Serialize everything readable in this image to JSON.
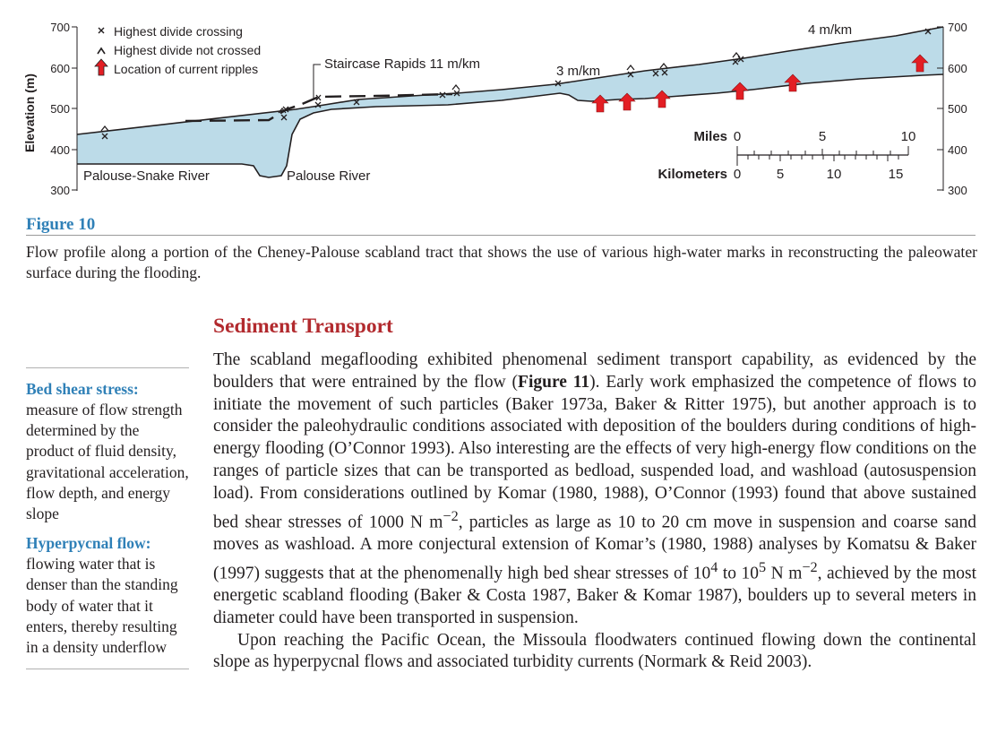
{
  "figure": {
    "label": "Figure 10",
    "caption": "Flow profile along a portion of the Cheney-Palouse scabland tract that shows the use of various high-water marks in reconstructing the paleowater surface during the flooding.",
    "y_axis_label": "Elevation (m)",
    "y_ticks": [
      "700",
      "600",
      "500",
      "400",
      "300"
    ],
    "legend": [
      "Highest divide crossing",
      "Highest divide not crossed",
      "Location of current ripples"
    ],
    "annotations": {
      "staircase": "Staircase Rapids 11 m/km",
      "gradient_3": "3 m/km",
      "gradient_4": "4 m/km",
      "palouse_snake": "Palouse-Snake River",
      "palouse_river": "Palouse River"
    },
    "scale": {
      "miles_label": "Miles",
      "miles_ticks": [
        "0",
        "5",
        "10"
      ],
      "km_label": "Kilometers",
      "km_ticks": [
        "0",
        "5",
        "10",
        "15"
      ]
    },
    "colors": {
      "water": "#bcdbe8",
      "arrow": "#e31e24",
      "figure_label": "#2f80b7"
    }
  },
  "section": {
    "title": "Sediment Transport",
    "p1_a": "The scabland megaflooding exhibited phenomenal sediment transport capability, as evidenced by the boulders that were entrained by the flow (",
    "p1_fig": "Figure 11",
    "p1_b": "). Early work emphasized the competence of flows to initiate the movement of such particles (Baker 1973a, Baker & Ritter 1975), but another approach is to consider the paleohydraulic conditions associated with deposition of the boulders during conditions of high-energy flooding (O’Connor 1993). Also interesting are the effects of very high-energy flow conditions on the ranges of particle sizes that can be transported as bedload, suspended load, and washload (autosuspension load). From considerations outlined by Komar (1980, 1988), O’Connor (1993) found that above sustained bed shear stresses of 1000 N m",
    "p1_sup1": "−2",
    "p1_c": ", particles as large as 10 to 20 cm move in suspension and coarse sand moves as washload. A more conjectural extension of Komar’s (1980, 1988) analyses by Komatsu & Baker (1997) suggests that at the phenomenally high bed shear stresses of 10",
    "p1_sup2": "4",
    "p1_d": " to 10",
    "p1_sup3": "5",
    "p1_e": " N m",
    "p1_sup4": "−2",
    "p1_f": ", achieved by the most energetic scabland flooding (Baker & Costa 1987, Baker & Komar 1987), boulders up to several meters in diameter could have been transported in suspension.",
    "p2": "Upon reaching the Pacific Ocean, the Missoula floodwaters continued flowing down the continental slope as hyperpycnal flows and associated turbidity currents (Normark & Reid 2003)."
  },
  "sidebar": {
    "terms": [
      {
        "term": "Bed shear stress:",
        "definition": "measure of flow strength determined by the product of fluid density, gravitational acceleration, flow depth, and energy slope"
      },
      {
        "term": "Hyperpycnal flow:",
        "definition": "flowing water that is denser than the standing body of water that it enters, thereby resulting in a density underflow"
      }
    ]
  }
}
